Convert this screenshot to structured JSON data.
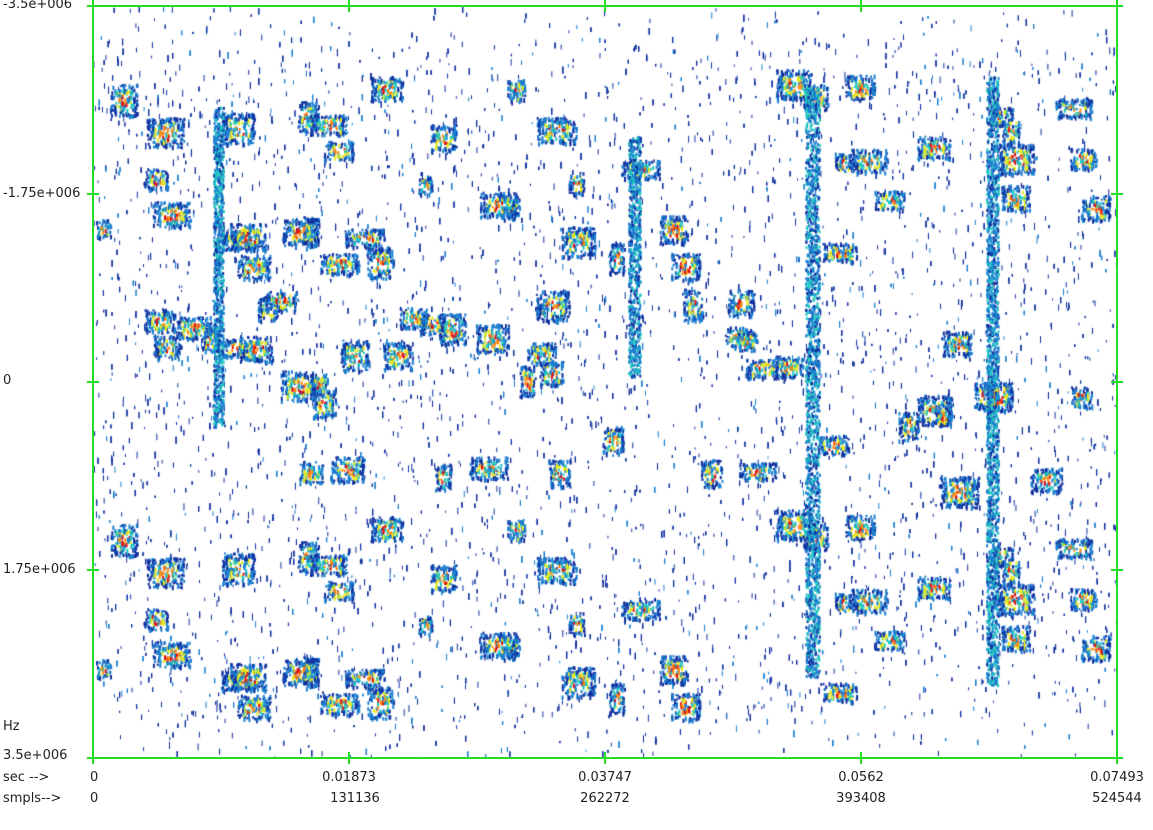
{
  "chart_data": {
    "type": "heatmap",
    "title": "",
    "xlabel_sec": "sec -->",
    "xlabel_samples": "smpls-->",
    "ylabel": "Hz",
    "x_ticks_sec": [
      "0",
      "0.01873",
      "0.03747",
      "0.0562",
      "0.07493"
    ],
    "x_ticks_samples": [
      "0",
      "131136",
      "262272",
      "393408",
      "524544"
    ],
    "x_range_sec": [
      0,
      0.07493
    ],
    "x_range_samples": [
      0,
      524544
    ],
    "y_ticks": [
      "-3.5e+006",
      "-1.75e+006",
      "0",
      "1.75e+006",
      "3.5e+006"
    ],
    "y_range_hz": [
      -3500000,
      3500000
    ],
    "grid": false,
    "frame_color": "#22dd22",
    "colormap": [
      "#ffffff",
      "#1030a0",
      "#1a7fd0",
      "#22c8c0",
      "#e8e820",
      "#ff8a10",
      "#e01010"
    ],
    "background": "#ffffff"
  }
}
